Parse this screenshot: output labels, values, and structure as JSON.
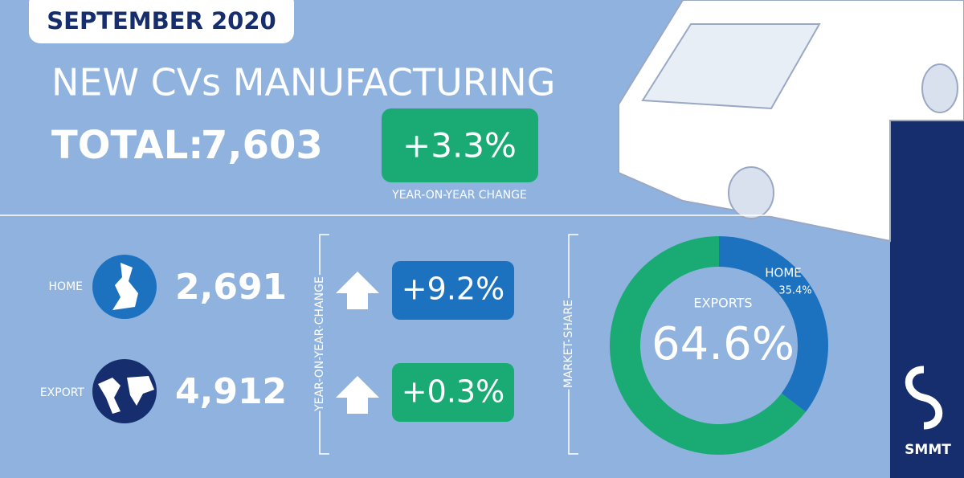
{
  "header": {
    "date": "SEPTEMBER 2020",
    "title": "NEW CVs MANUFACTURING"
  },
  "total": {
    "label": "TOTAL:",
    "value": "7,603",
    "change": "+3.3%",
    "change_label": "YEAR-ON-YEAR CHANGE"
  },
  "rows": [
    {
      "label": "HOME",
      "value": "2,691",
      "change": "+9.2%"
    },
    {
      "label": "EXPORT",
      "value": "4,912",
      "change": "+0.3%"
    }
  ],
  "yoy_label": "YEAR-ON-YEAR CHANGE",
  "market_share_label": "MARKET SHARE",
  "chart_data": {
    "type": "pie",
    "categories": [
      "HOME",
      "EXPORTS"
    ],
    "values": [
      35.4,
      64.6
    ],
    "value_labels": [
      "35.4%",
      "64.6%"
    ],
    "colors": [
      "#1d72bf",
      "#1aab74"
    ]
  },
  "logo": "SMMT"
}
